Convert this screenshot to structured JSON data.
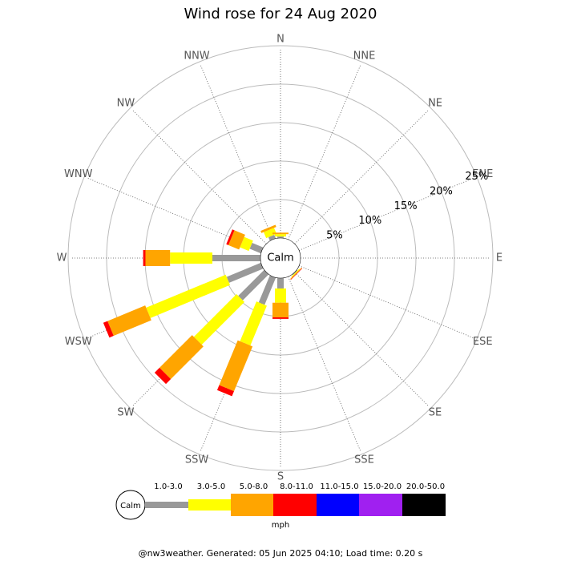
{
  "chart_data": {
    "type": "windrose",
    "title": "Wind rose for 24 Aug 2020",
    "directions": [
      "N",
      "NNE",
      "NE",
      "ENE",
      "E",
      "ESE",
      "SE",
      "SSE",
      "S",
      "SSW",
      "SW",
      "WSW",
      "W",
      "WNW",
      "NW",
      "NNW"
    ],
    "calm_label": "Calm",
    "rlim": [
      0,
      25
    ],
    "rticks": [
      {
        "value": 5,
        "label": "5%"
      },
      {
        "value": 10,
        "label": "10%"
      },
      {
        "value": 15,
        "label": "15%"
      },
      {
        "value": 20,
        "label": "20%"
      },
      {
        "value": 25,
        "label": "25%"
      }
    ],
    "unit": "mph",
    "series": [
      {
        "name": "1.0-3.0",
        "color": "#999999",
        "values": [
          0.2,
          0,
          0,
          0,
          0,
          0,
          0.1,
          0,
          1.35,
          3.8,
          4.75,
          4.8,
          6.25,
          1.56,
          0,
          0.5
        ]
      },
      {
        "name": "3.0-5.0",
        "color": "#ffff00",
        "values": [
          0.3,
          0,
          0,
          0,
          0,
          0,
          0.1,
          0,
          1.85,
          5.6,
          7.85,
          11.2,
          5.5,
          1.24,
          0,
          0.85
        ]
      },
      {
        "name": "5.0-8.0",
        "color": "#ffa500",
        "values": [
          0.2,
          0,
          0,
          0,
          0,
          0,
          0.1,
          0,
          1.9,
          6.3,
          6.0,
          5.3,
          3.2,
          1.5,
          0,
          0.3
        ]
      },
      {
        "name": "8.0-11.0",
        "color": "#ff0000",
        "values": [
          0,
          0,
          0,
          0,
          0,
          0,
          0.05,
          0,
          0.2,
          0.7,
          0.9,
          0.6,
          0.3,
          0.3,
          0,
          0
        ]
      },
      {
        "name": "11.0-15.0",
        "color": "#0000ff",
        "values": [
          0,
          0,
          0,
          0,
          0,
          0,
          0,
          0,
          0,
          0,
          0,
          0,
          0,
          0,
          0,
          0
        ]
      },
      {
        "name": "15.0-20.0",
        "color": "#a020f0",
        "values": [
          0,
          0,
          0,
          0,
          0,
          0,
          0,
          0,
          0,
          0,
          0,
          0,
          0,
          0,
          0,
          0
        ]
      },
      {
        "name": "20.0-50.0",
        "color": "#000000",
        "values": [
          0,
          0,
          0,
          0,
          0,
          0,
          0,
          0,
          0,
          0,
          0,
          0,
          0,
          0,
          0,
          0
        ]
      }
    ],
    "footer": "@nw3weather. Generated: 05 Jun 2025 04:10; Load time: 0.20 s"
  }
}
